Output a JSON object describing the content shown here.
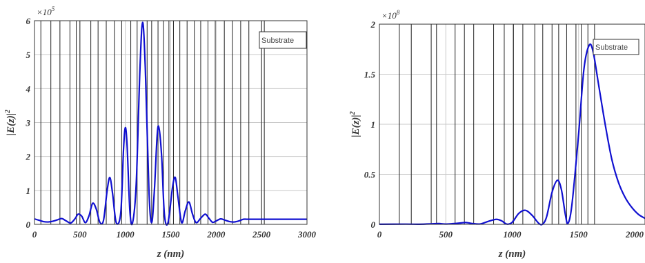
{
  "chart_data": [
    {
      "type": "line",
      "xlabel": "z (nm)",
      "ylabel": "|E(z)|",
      "ylabel_exponent": "2",
      "y_multiplier": "×10",
      "y_multiplier_exponent": "5",
      "xlim": [
        0,
        3000
      ],
      "ylim": [
        0,
        6
      ],
      "xticks": [
        0,
        500,
        1000,
        1500,
        2000,
        2500,
        3000
      ],
      "yticks": [
        0,
        1,
        2,
        3,
        4,
        5,
        6
      ],
      "grid": true,
      "legend": {
        "label": "Substrate",
        "position": "top-right"
      },
      "color": "#1010d0",
      "layer_boundaries_nm": [
        0,
        70,
        180,
        280,
        390,
        460,
        500,
        620,
        700,
        790,
        880,
        960,
        1060,
        1130,
        1240,
        1290,
        1360,
        1420,
        1480,
        1530,
        1600,
        1680,
        1760,
        1830,
        1910,
        1990,
        2090,
        2180,
        2270,
        2360,
        2500,
        2530
      ],
      "series": [
        {
          "points": [
            [
              0,
              0.16
            ],
            [
              50,
              0.12
            ],
            [
              100,
              0.08
            ],
            [
              150,
              0.07
            ],
            [
              200,
              0.09
            ],
            [
              250,
              0.13
            ],
            [
              300,
              0.17
            ],
            [
              350,
              0.1
            ],
            [
              400,
              0.04
            ],
            [
              450,
              0.18
            ],
            [
              480,
              0.3
            ],
            [
              520,
              0.24
            ],
            [
              560,
              0.05
            ],
            [
              600,
              0.25
            ],
            [
              640,
              0.62
            ],
            [
              680,
              0.45
            ],
            [
              720,
              0.06
            ],
            [
              760,
              0.12
            ],
            [
              800,
              1.0
            ],
            [
              830,
              1.38
            ],
            [
              860,
              0.9
            ],
            [
              900,
              0.05
            ],
            [
              950,
              0.35
            ],
            [
              980,
              2.2
            ],
            [
              1000,
              2.85
            ],
            [
              1020,
              2.3
            ],
            [
              1050,
              0.4
            ],
            [
              1080,
              0.05
            ],
            [
              1120,
              1.2
            ],
            [
              1160,
              4.5
            ],
            [
              1190,
              5.95
            ],
            [
              1220,
              4.6
            ],
            [
              1260,
              1.0
            ],
            [
              1290,
              0.05
            ],
            [
              1320,
              1.0
            ],
            [
              1350,
              2.6
            ],
            [
              1370,
              2.85
            ],
            [
              1400,
              2.0
            ],
            [
              1430,
              0.3
            ],
            [
              1470,
              0.05
            ],
            [
              1520,
              1.1
            ],
            [
              1550,
              1.38
            ],
            [
              1580,
              0.8
            ],
            [
              1620,
              0.05
            ],
            [
              1660,
              0.4
            ],
            [
              1700,
              0.66
            ],
            [
              1740,
              0.3
            ],
            [
              1780,
              0.05
            ],
            [
              1830,
              0.18
            ],
            [
              1880,
              0.3
            ],
            [
              1920,
              0.18
            ],
            [
              1960,
              0.06
            ],
            [
              2000,
              0.1
            ],
            [
              2050,
              0.16
            ],
            [
              2100,
              0.12
            ],
            [
              2150,
              0.08
            ],
            [
              2200,
              0.07
            ],
            [
              2250,
              0.1
            ],
            [
              2300,
              0.15
            ],
            [
              2350,
              0.15
            ],
            [
              2500,
              0.15
            ],
            [
              3000,
              0.15
            ]
          ]
        }
      ]
    },
    {
      "type": "line",
      "xlabel": "z (nm)",
      "ylabel": "|E(z)|",
      "ylabel_exponent": "2",
      "y_multiplier": "×10",
      "y_multiplier_exponent": "8",
      "xlim": [
        0,
        2000
      ],
      "ylim": [
        0,
        2
      ],
      "xticks": [
        0,
        500,
        1000,
        1500,
        2000
      ],
      "xtick_labels": [
        "0",
        "500",
        "1000",
        "1500",
        "2000"
      ],
      "yticks": [
        0,
        0.5,
        1,
        1.5,
        2
      ],
      "ytick_labels": [
        "0",
        "0.5",
        "1",
        "1.5",
        "2"
      ],
      "grid": true,
      "legend": {
        "label": "Substrate",
        "position": "top-right"
      },
      "color": "#1010d0",
      "layer_boundaries_nm": [
        0,
        150,
        240,
        390,
        430,
        570,
        640,
        710,
        860,
        940,
        1010,
        1080,
        1170,
        1230,
        1300,
        1350,
        1410,
        1480,
        1520,
        1570,
        1620
      ],
      "series": [
        {
          "points": [
            [
              0,
              0.001
            ],
            [
              200,
              0.002
            ],
            [
              300,
              0.001
            ],
            [
              400,
              0.005
            ],
            [
              450,
              0.008
            ],
            [
              500,
              0.003
            ],
            [
              600,
              0.012
            ],
            [
              650,
              0.018
            ],
            [
              700,
              0.008
            ],
            [
              760,
              0.004
            ],
            [
              820,
              0.03
            ],
            [
              880,
              0.05
            ],
            [
              920,
              0.035
            ],
            [
              960,
              0.002
            ],
            [
              1000,
              0.02
            ],
            [
              1050,
              0.11
            ],
            [
              1100,
              0.14
            ],
            [
              1150,
              0.09
            ],
            [
              1200,
              0.01
            ],
            [
              1230,
              0.003
            ],
            [
              1260,
              0.08
            ],
            [
              1300,
              0.32
            ],
            [
              1340,
              0.44
            ],
            [
              1370,
              0.35
            ],
            [
              1400,
              0.1
            ],
            [
              1420,
              0.01
            ],
            [
              1450,
              0.2
            ],
            [
              1500,
              0.9
            ],
            [
              1540,
              1.55
            ],
            [
              1580,
              1.79
            ],
            [
              1610,
              1.72
            ],
            [
              1650,
              1.4
            ],
            [
              1700,
              1.0
            ],
            [
              1750,
              0.65
            ],
            [
              1800,
              0.42
            ],
            [
              1850,
              0.27
            ],
            [
              1900,
              0.17
            ],
            [
              1950,
              0.1
            ],
            [
              2000,
              0.06
            ]
          ]
        }
      ]
    }
  ]
}
